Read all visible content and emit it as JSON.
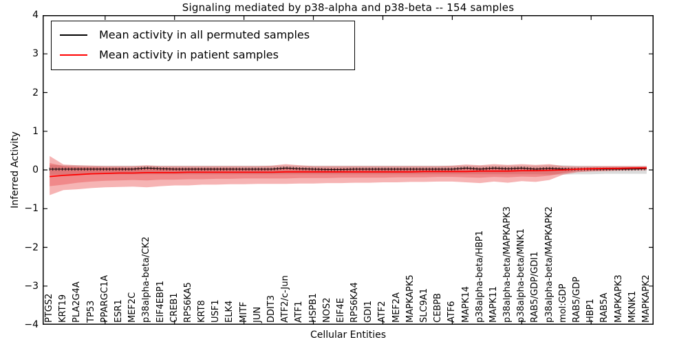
{
  "chart_data": {
    "type": "line",
    "title": "Signaling mediated by p38-alpha and p38-beta -- 154 samples",
    "xlabel": "Cellular Entities",
    "ylabel": "Inferred Activity",
    "ylim": [
      -4,
      4
    ],
    "ytick_labels": [
      "4",
      "3",
      "2",
      "1",
      "0",
      "−1",
      "−2",
      "−3",
      "−4"
    ],
    "xtick_major_every": 5,
    "grid": "off",
    "legend_position": "upper-left",
    "frame_color": "#000000",
    "categories": [
      "PTGS2",
      "KRT19",
      "PLA2G4A",
      "TP53",
      "PPARGC1A",
      "ESR1",
      "MEF2C",
      "p38alpha-beta/CK2",
      "EIF4EBP1",
      "CREB1",
      "RPS6KA5",
      "KRT8",
      "USF1",
      "ELK4",
      "MITF",
      "JUN",
      "DDIT3",
      "ATF2/c-Jun",
      "ATF1",
      "HSPB1",
      "NOS2",
      "EIF4E",
      "RPS6KA4",
      "GDI1",
      "ATF2",
      "MEF2A",
      "MAPKAPK5",
      "SLC9A1",
      "CEBPB",
      "ATF6",
      "MAPK14",
      "p38alpha-beta/HBP1",
      "MAPK11",
      "p38alpha-beta/MAPKAPK3",
      "p38alpha-beta/MNK1",
      "RAB5/GDP/GDI1",
      "p38alpha-beta/MAPKAPK2",
      "mol:GDP",
      "RAB5/GDP",
      "HBP1",
      "RAB5A",
      "MAPKAPK3",
      "MKNK1",
      "MAPKAPK2"
    ],
    "series": [
      {
        "name": "Mean activity in all permuted samples",
        "color": "#000000",
        "values": [
          0.02,
          0.02,
          0.02,
          0.02,
          0.02,
          0.02,
          0.02,
          0.05,
          0.03,
          0.02,
          0.02,
          0.02,
          0.02,
          0.02,
          0.02,
          0.02,
          0.02,
          0.05,
          0.03,
          0.02,
          0.01,
          0.01,
          0.02,
          0.02,
          0.02,
          0.02,
          0.02,
          0.02,
          0.02,
          0.02,
          0.05,
          0.02,
          0.05,
          0.03,
          0.05,
          0.02,
          0.04,
          0.02,
          0.02,
          0.02,
          0.02,
          0.02,
          0.02,
          0.03
        ]
      },
      {
        "name": "Mean activity in patient samples",
        "color": "#ff0000",
        "values": [
          -0.17,
          -0.14,
          -0.12,
          -0.1,
          -0.09,
          -0.08,
          -0.08,
          -0.07,
          -0.07,
          -0.07,
          -0.06,
          -0.06,
          -0.06,
          -0.06,
          -0.06,
          -0.06,
          -0.06,
          -0.05,
          -0.05,
          -0.05,
          -0.05,
          -0.05,
          -0.05,
          -0.05,
          -0.05,
          -0.05,
          -0.05,
          -0.04,
          -0.04,
          -0.04,
          -0.04,
          -0.03,
          -0.03,
          -0.03,
          -0.02,
          -0.02,
          -0.01,
          0.0,
          0.02,
          0.03,
          0.04,
          0.04,
          0.05,
          0.05
        ]
      }
    ],
    "bands": [
      {
        "name": "permuted-range",
        "color": "#bdbdbd",
        "opacity": 0.55,
        "top": [
          0.13,
          0.12,
          0.12,
          0.11,
          0.11,
          0.11,
          0.11,
          0.11,
          0.11,
          0.11,
          0.11,
          0.11,
          0.11,
          0.11,
          0.11,
          0.11,
          0.11,
          0.11,
          0.11,
          0.11,
          0.11,
          0.11,
          0.11,
          0.11,
          0.11,
          0.11,
          0.11,
          0.11,
          0.11,
          0.11,
          0.11,
          0.11,
          0.11,
          0.11,
          0.11,
          0.11,
          0.12,
          0.12,
          0.11,
          0.11,
          0.1,
          0.1,
          0.1,
          0.1
        ],
        "bottom": [
          -0.13,
          -0.12,
          -0.12,
          -0.11,
          -0.11,
          -0.11,
          -0.11,
          -0.11,
          -0.11,
          -0.11,
          -0.11,
          -0.11,
          -0.11,
          -0.11,
          -0.11,
          -0.11,
          -0.11,
          -0.11,
          -0.11,
          -0.11,
          -0.11,
          -0.11,
          -0.11,
          -0.11,
          -0.11,
          -0.11,
          -0.11,
          -0.11,
          -0.11,
          -0.11,
          -0.11,
          -0.11,
          -0.11,
          -0.11,
          -0.11,
          -0.11,
          -0.12,
          -0.12,
          -0.11,
          -0.11,
          -0.1,
          -0.1,
          -0.1,
          -0.1
        ]
      },
      {
        "name": "patient-range-outer",
        "color": "#e41a1c",
        "opacity": 0.33,
        "top": [
          0.36,
          0.14,
          0.12,
          0.11,
          0.1,
          0.1,
          0.1,
          0.12,
          0.1,
          0.1,
          0.1,
          0.1,
          0.1,
          0.1,
          0.1,
          0.1,
          0.11,
          0.15,
          0.12,
          0.1,
          0.1,
          0.1,
          0.1,
          0.1,
          0.1,
          0.1,
          0.1,
          0.1,
          0.1,
          0.11,
          0.14,
          0.12,
          0.15,
          0.13,
          0.15,
          0.13,
          0.15,
          0.1,
          0.09,
          0.09,
          0.1,
          0.1,
          0.1,
          0.1
        ],
        "bottom": [
          -0.65,
          -0.52,
          -0.5,
          -0.47,
          -0.45,
          -0.44,
          -0.43,
          -0.45,
          -0.42,
          -0.4,
          -0.4,
          -0.38,
          -0.38,
          -0.37,
          -0.37,
          -0.36,
          -0.36,
          -0.36,
          -0.35,
          -0.35,
          -0.34,
          -0.34,
          -0.33,
          -0.33,
          -0.32,
          -0.32,
          -0.31,
          -0.31,
          -0.3,
          -0.3,
          -0.32,
          -0.34,
          -0.3,
          -0.33,
          -0.29,
          -0.31,
          -0.26,
          -0.12,
          -0.06,
          -0.04,
          -0.03,
          -0.02,
          -0.01,
          -0.01
        ]
      },
      {
        "name": "patient-range-inner",
        "color": "#e41a1c",
        "opacity": 0.28,
        "top": [
          0.18,
          0.1,
          0.08,
          0.07,
          0.06,
          0.06,
          0.05,
          0.06,
          0.05,
          0.05,
          0.05,
          0.05,
          0.05,
          0.05,
          0.04,
          0.04,
          0.04,
          0.06,
          0.05,
          0.04,
          0.04,
          0.04,
          0.04,
          0.04,
          0.04,
          0.04,
          0.04,
          0.04,
          0.04,
          0.04,
          0.05,
          0.05,
          0.06,
          0.05,
          0.06,
          0.05,
          0.06,
          0.05,
          0.05,
          0.06,
          0.06,
          0.07,
          0.07,
          0.08
        ],
        "bottom": [
          -0.42,
          -0.38,
          -0.33,
          -0.3,
          -0.28,
          -0.27,
          -0.26,
          -0.27,
          -0.25,
          -0.25,
          -0.24,
          -0.24,
          -0.23,
          -0.23,
          -0.22,
          -0.22,
          -0.22,
          -0.22,
          -0.21,
          -0.21,
          -0.21,
          -0.2,
          -0.2,
          -0.2,
          -0.2,
          -0.19,
          -0.19,
          -0.19,
          -0.18,
          -0.18,
          -0.19,
          -0.2,
          -0.18,
          -0.19,
          -0.17,
          -0.18,
          -0.15,
          -0.08,
          -0.03,
          -0.02,
          -0.01,
          0.0,
          0.01,
          0.02
        ]
      }
    ]
  },
  "legend": {
    "items": [
      {
        "label": "Mean activity in all permuted samples",
        "color": "#000000"
      },
      {
        "label": "Mean activity in patient samples",
        "color": "#ff0000"
      }
    ]
  }
}
